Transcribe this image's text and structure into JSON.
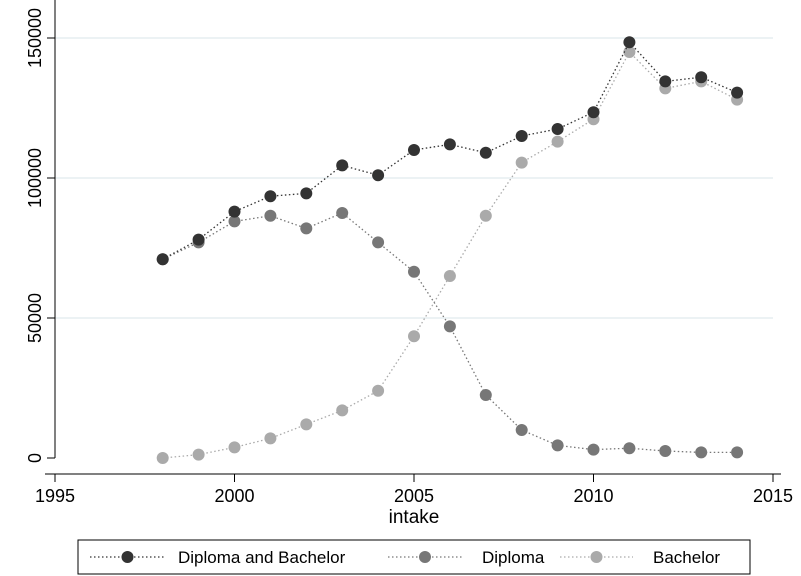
{
  "chart_data": {
    "type": "line",
    "title": "",
    "xlabel": "intake",
    "ylabel": "",
    "xlim": [
      1995,
      2015
    ],
    "ylim": [
      0,
      150000
    ],
    "x_ticks": [
      1995,
      2000,
      2005,
      2010,
      2015
    ],
    "y_ticks": [
      0,
      50000,
      100000,
      150000
    ],
    "grid": true,
    "legend_position": "bottom",
    "x": [
      1998,
      1999,
      2000,
      2001,
      2002,
      2003,
      2004,
      2005,
      2006,
      2007,
      2008,
      2009,
      2010,
      2011,
      2012,
      2013,
      2014
    ],
    "series": [
      {
        "name": "Diploma and Bachelor",
        "color": "#333333",
        "values": [
          71000,
          78000,
          88000,
          93500,
          94500,
          104500,
          101000,
          110000,
          112000,
          109000,
          115000,
          117500,
          123500,
          148500,
          134500,
          136000,
          130500
        ]
      },
      {
        "name": "Diploma",
        "color": "#777777",
        "values": [
          71000,
          77000,
          84500,
          86500,
          82000,
          87500,
          77000,
          66500,
          47000,
          22500,
          10000,
          4500,
          3000,
          3500,
          2500,
          2000,
          2000
        ]
      },
      {
        "name": "Bachelor",
        "color": "#aaaaaa",
        "values": [
          0,
          1200,
          3800,
          7000,
          12000,
          17000,
          24000,
          43500,
          65000,
          86500,
          105500,
          113000,
          121000,
          145000,
          132000,
          134500,
          128000
        ]
      }
    ]
  }
}
